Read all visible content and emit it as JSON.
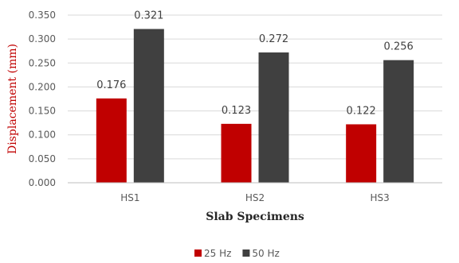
{
  "chart_data": {
    "type": "bar",
    "title": "",
    "xlabel": "Slab Specimens",
    "ylabel": "Displacement (mm)",
    "categories": [
      "HS1",
      "HS2",
      "HS3"
    ],
    "series": [
      {
        "name": "25 Hz",
        "values": [
          0.176,
          0.123,
          0.122
        ],
        "color": "#c00000"
      },
      {
        "name": "50 Hz",
        "values": [
          0.321,
          0.272,
          0.256
        ],
        "color": "#404040"
      }
    ],
    "ylim": [
      0,
      0.35
    ],
    "yticks": [
      "0.000",
      "0.050",
      "0.100",
      "0.150",
      "0.200",
      "0.250",
      "0.300",
      "0.350"
    ],
    "data_labels": [
      [
        "0.176",
        "0.123",
        "0.122"
      ],
      [
        "0.321",
        "0.272",
        "0.256"
      ]
    ],
    "grid": true,
    "legend_position": "bottom"
  }
}
